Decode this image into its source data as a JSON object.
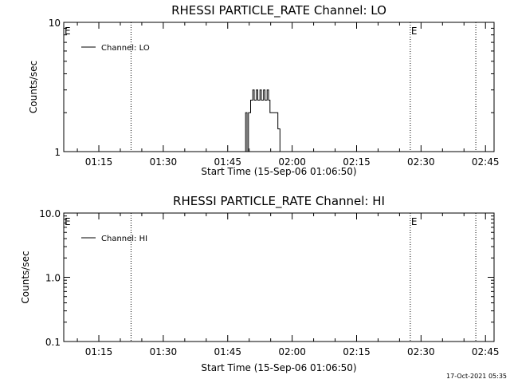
{
  "footer": {
    "timestamp": "17-Oct-2021 05:35"
  },
  "chart_data": [
    {
      "type": "line",
      "title": "RHESSI PARTICLE_RATE Channel: LO",
      "xlabel": "Start Time (15-Sep-06 01:06:50)",
      "ylabel": "Counts/sec",
      "y_scale": "log",
      "xlim": [
        "01:06:50",
        "02:47:00"
      ],
      "ylim": [
        1,
        10
      ],
      "x_ticks": [
        "01:15",
        "01:30",
        "01:45",
        "02:00",
        "02:15",
        "02:30",
        "02:45"
      ],
      "y_ticks": [
        "1",
        "10"
      ],
      "legend": {
        "position": "top-left",
        "entries": [
          "Channel: LO"
        ]
      },
      "vertical_markers": [
        {
          "time": "01:22:30",
          "style": "dotted",
          "label": ""
        },
        {
          "time": "02:27:30",
          "style": "dotted",
          "label": "E"
        },
        {
          "time": "02:42:45",
          "style": "dotted",
          "label": ""
        }
      ],
      "corner_label": "E",
      "series": [
        {
          "name": "Channel: LO",
          "points": [
            [
              "01:06:50",
              1
            ],
            [
              "01:49:10",
              1
            ],
            [
              "01:49:10",
              2
            ],
            [
              "01:49:30",
              2
            ],
            [
              "01:49:30",
              1
            ],
            [
              "01:49:50",
              1
            ],
            [
              "01:49:50",
              2
            ],
            [
              "01:50:20",
              2
            ],
            [
              "01:50:20",
              2.5
            ],
            [
              "01:50:50",
              2.5
            ],
            [
              "01:50:50",
              3
            ],
            [
              "01:51:10",
              3
            ],
            [
              "01:51:10",
              2.5
            ],
            [
              "01:51:40",
              2.5
            ],
            [
              "01:51:40",
              3
            ],
            [
              "01:52:00",
              3
            ],
            [
              "01:52:00",
              2.5
            ],
            [
              "01:52:30",
              2.5
            ],
            [
              "01:52:30",
              3
            ],
            [
              "01:52:50",
              3
            ],
            [
              "01:52:50",
              2.5
            ],
            [
              "01:53:20",
              2.5
            ],
            [
              "01:53:20",
              3
            ],
            [
              "01:53:40",
              3
            ],
            [
              "01:53:40",
              2.5
            ],
            [
              "01:54:10",
              2.5
            ],
            [
              "01:54:10",
              3
            ],
            [
              "01:54:30",
              3
            ],
            [
              "01:54:30",
              2.5
            ],
            [
              "01:54:50",
              2.5
            ],
            [
              "01:54:50",
              2
            ],
            [
              "01:56:40",
              2
            ],
            [
              "01:56:40",
              1.5
            ],
            [
              "01:57:10",
              1.5
            ],
            [
              "01:57:10",
              1
            ],
            [
              "02:47:00",
              1
            ]
          ]
        }
      ]
    },
    {
      "type": "line",
      "title": "RHESSI PARTICLE_RATE Channel: HI",
      "xlabel": "Start Time (15-Sep-06 01:06:50)",
      "ylabel": "Counts/sec",
      "y_scale": "log",
      "xlim": [
        "01:06:50",
        "02:47:00"
      ],
      "ylim": [
        0.1,
        10
      ],
      "x_ticks": [
        "01:15",
        "01:30",
        "01:45",
        "02:00",
        "02:15",
        "02:30",
        "02:45"
      ],
      "y_ticks": [
        "0.1",
        "1.0",
        "10.0"
      ],
      "legend": {
        "position": "top-left",
        "entries": [
          "Channel: HI"
        ]
      },
      "vertical_markers": [
        {
          "time": "01:22:30",
          "style": "dotted",
          "label": ""
        },
        {
          "time": "02:27:30",
          "style": "dotted",
          "label": "E"
        },
        {
          "time": "02:42:45",
          "style": "dotted",
          "label": ""
        }
      ],
      "corner_label": "E",
      "series": [
        {
          "name": "Channel: HI",
          "points": []
        }
      ]
    }
  ]
}
